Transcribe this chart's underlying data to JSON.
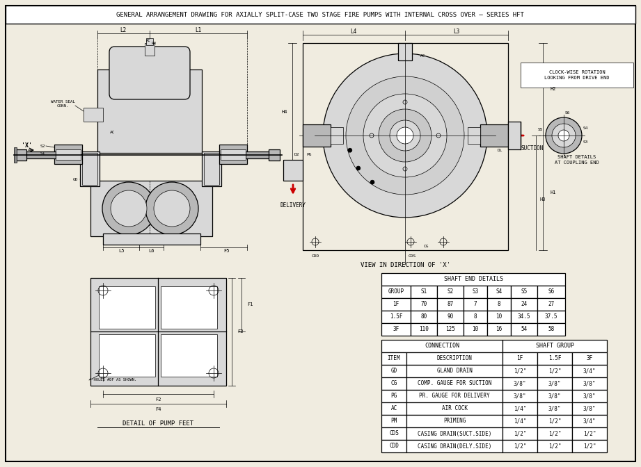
{
  "title": "GENERAL ARRANGEMENT DRAWING FOR AXIALLY SPLIT-CASE TWO STAGE FIRE PUMPS WITH INTERNAL CROSS OVER – SERIES HFT",
  "bg_color": "#f0ece0",
  "shaft_end_table": {
    "header": "SHAFT END DETAILS",
    "columns": [
      "GROUP",
      "S1",
      "S2",
      "S3",
      "S4",
      "S5",
      "S6"
    ],
    "rows": [
      [
        "1F",
        "70",
        "87",
        "7",
        "8",
        "24",
        "27"
      ],
      [
        "1.5F",
        "80",
        "90",
        "8",
        "10",
        "34.5",
        "37.5"
      ],
      [
        "3F",
        "110",
        "125",
        "10",
        "16",
        "54",
        "58"
      ]
    ]
  },
  "connection_table": {
    "conn_header": "CONNECTION",
    "shaft_header": "SHAFT GROUP",
    "col_headers": [
      "ITEM",
      "DESCRIPTION",
      "1F",
      "1.5F",
      "3F"
    ],
    "rows": [
      [
        "GD",
        "GLAND DRAIN",
        "1/2\"",
        "1/2\"",
        "3/4\""
      ],
      [
        "CG",
        "COMP. GAUGE FOR SUCTION",
        "3/8\"",
        "3/8\"",
        "3/8\""
      ],
      [
        "PG",
        "PR. GAUGE FOR DELIVERY",
        "3/8\"",
        "3/8\"",
        "3/8\""
      ],
      [
        "AC",
        "AIR COCK",
        "1/4\"",
        "3/8\"",
        "3/8\""
      ],
      [
        "PM",
        "PRIMING",
        "1/4\"",
        "1/2\"",
        "3/4\""
      ],
      [
        "CDS",
        "CASING DRAIN(SUCT.SIDE)",
        "1/2\"",
        "1/2\"",
        "1/2\""
      ],
      [
        "CDD",
        "CASING DRAIN(DELY.SIDE)",
        "1/2\"",
        "1/2\"",
        "1/2\""
      ]
    ]
  },
  "view_in_x_label": "VIEW IN DIRECTION OF 'X'",
  "detail_pump_feet_label": "DETAIL OF PUMP FEET",
  "clockwise_label": "CLOCK-WISE ROTATION\nLOOKING FROM DRIVE END",
  "shaft_details_label": "SHAFT DETAILS\nAT COUPLING END",
  "delivery_label": "DELIVERY",
  "suction_label": "SUCTION",
  "x_label": "'X'"
}
